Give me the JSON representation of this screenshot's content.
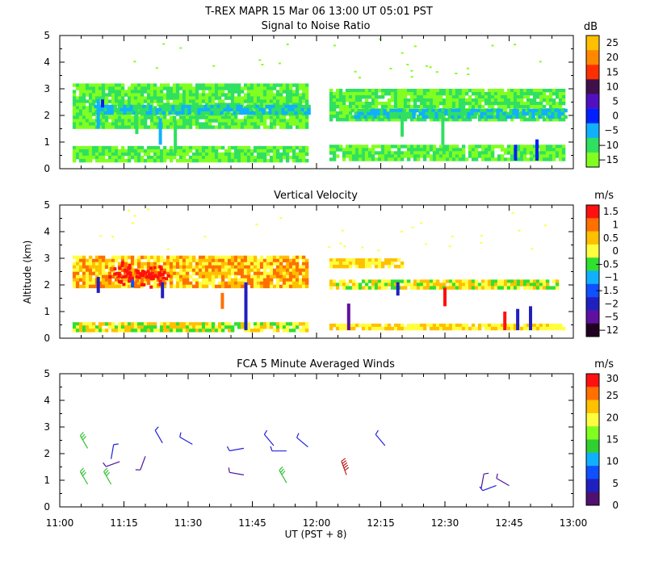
{
  "figure": {
    "title": "T-REX   MAPR 15 Mar 06   13:00 UT   05:01   PST",
    "xlabel": "UT  (PST + 8)",
    "x_ticks": [
      "11:00",
      "11:15",
      "11:30",
      "11:45",
      "12:00",
      "12:15",
      "12:30",
      "12:45",
      "13:00"
    ],
    "x_range_minutes": [
      660,
      780
    ]
  },
  "chart_data": [
    {
      "id": "snr",
      "type": "heatmap",
      "title": "Signal to Noise Ratio",
      "ylabel": "",
      "ylim": [
        0,
        5
      ],
      "y_ticks": [
        "0",
        "1",
        "2",
        "3",
        "4",
        "5"
      ],
      "colorbar": {
        "unit": "dB",
        "labels": [
          "25",
          "20",
          "15",
          "10",
          "5",
          "0",
          "−5",
          "−10",
          "−15"
        ],
        "colors": [
          "#ffc000",
          "#ff8800",
          "#ff3000",
          "#40104a",
          "#5010c0",
          "#0020ff",
          "#10b0ff",
          "#30e060",
          "#80ff20"
        ]
      },
      "data_gap_ut": [
        "11:59",
        "12:06"
      ],
      "layers": [
        {
          "t": [
            663,
            718
          ],
          "z": [
            0.35,
            0.85
          ],
          "colors": [
            "#80ff20",
            "#30e060"
          ],
          "value_db": -12
        },
        {
          "t": [
            723,
            778
          ],
          "z": [
            0.3,
            0.9
          ],
          "colors": [
            "#80ff20",
            "#30e060"
          ],
          "value_db": -12
        },
        {
          "t": [
            663,
            718
          ],
          "z": [
            1.6,
            3.2
          ],
          "colors": [
            "#80ff20",
            "#30e060"
          ],
          "value_db": -11
        },
        {
          "t": [
            723,
            778
          ],
          "z": [
            1.9,
            3.0
          ],
          "colors": [
            "#80ff20",
            "#30e060"
          ],
          "value_db": -11
        },
        {
          "t": [
            668,
            718
          ],
          "z": [
            2.05,
            2.4
          ],
          "colors": [
            "#10b0ff",
            "#30e060"
          ],
          "value_db": -6
        },
        {
          "t": [
            728,
            778
          ],
          "z": [
            2.0,
            2.25
          ],
          "colors": [
            "#10b0ff",
            "#30e060"
          ],
          "value_db": -6
        }
      ],
      "plumes": [
        {
          "t": 669,
          "z": [
            1.5,
            2.6
          ],
          "color": "#10b0ff"
        },
        {
          "t": 670,
          "z": [
            2.3,
            2.6
          ],
          "color": "#0020ff"
        },
        {
          "t": 678,
          "z": [
            1.3,
            2.3
          ],
          "color": "#30e060"
        },
        {
          "t": 683.5,
          "z": [
            0.9,
            1.9
          ],
          "color": "#10b0ff"
        },
        {
          "t": 687,
          "z": [
            0.6,
            1.8
          ],
          "color": "#30e060"
        },
        {
          "t": 740,
          "z": [
            1.2,
            2.1
          ],
          "color": "#30e060"
        },
        {
          "t": 749.5,
          "z": [
            0.9,
            2.1
          ],
          "color": "#30e060"
        },
        {
          "t": 766.5,
          "z": [
            0.3,
            0.9
          ],
          "color": "#0020ff"
        },
        {
          "t": 771.5,
          "z": [
            0.3,
            1.1
          ],
          "color": "#0020ff"
        }
      ]
    },
    {
      "id": "velocity",
      "type": "heatmap",
      "title": "Vertical Velocity",
      "ylabel": "Altitude (km)",
      "ylim": [
        0,
        5
      ],
      "y_ticks": [
        "0",
        "1",
        "2",
        "3",
        "4",
        "5"
      ],
      "colorbar": {
        "unit": "m/s",
        "labels": [
          "1.5",
          "1",
          "0.5",
          "0",
          "−0.5",
          "−1",
          "−1.5",
          "−2",
          "−5",
          "−12"
        ],
        "colors": [
          "#ff1010",
          "#ff7000",
          "#ffc000",
          "#ffff40",
          "#30e030",
          "#10b0ff",
          "#1050ff",
          "#2020c0",
          "#6010a0",
          "#200020"
        ]
      },
      "data_gap_ut": [
        "11:59",
        "12:06"
      ],
      "layers": [
        {
          "t": [
            663,
            718
          ],
          "z": [
            0.35,
            0.6
          ],
          "colors": [
            "#ffff40",
            "#ffc000",
            "#30e030"
          ],
          "value_ms": 0.1
        },
        {
          "t": [
            723,
            778
          ],
          "z": [
            0.35,
            0.55
          ],
          "colors": [
            "#ffff40",
            "#ffc000"
          ],
          "value_ms": 0.1
        },
        {
          "t": [
            663,
            718
          ],
          "z": [
            1.9,
            3.1
          ],
          "colors": [
            "#ffc000",
            "#ffff40",
            "#ff7000"
          ],
          "value_ms": 0.6
        },
        {
          "t": [
            723,
            740
          ],
          "z": [
            2.7,
            3.0
          ],
          "colors": [
            "#ffff40",
            "#ffc000"
          ],
          "value_ms": 0.2
        },
        {
          "t": [
            723,
            776
          ],
          "z": [
            1.95,
            2.2
          ],
          "colors": [
            "#ffff40",
            "#ffc000",
            "#30e030"
          ],
          "value_ms": 0.0
        }
      ],
      "hot_spots": [
        {
          "t": 675,
          "z": 2.5,
          "color": "#ff1010"
        },
        {
          "t": 681,
          "z": 2.4,
          "color": "#ff1010"
        }
      ],
      "plumes": [
        {
          "t": 669,
          "z": [
            1.7,
            2.3
          ],
          "color": "#2020c0"
        },
        {
          "t": 677,
          "z": [
            1.9,
            2.2
          ],
          "color": "#1050ff"
        },
        {
          "t": 684,
          "z": [
            1.5,
            2.1
          ],
          "color": "#2020c0"
        },
        {
          "t": 698,
          "z": [
            1.1,
            1.7
          ],
          "color": "#ff7000"
        },
        {
          "t": 703.5,
          "z": [
            0.3,
            2.1
          ],
          "color": "#2020c0"
        },
        {
          "t": 727.5,
          "z": [
            0.3,
            1.3
          ],
          "color": "#6010a0"
        },
        {
          "t": 739,
          "z": [
            1.6,
            2.1
          ],
          "color": "#2020c0"
        },
        {
          "t": 750,
          "z": [
            1.2,
            1.9
          ],
          "color": "#ff1010"
        },
        {
          "t": 764,
          "z": [
            0.3,
            1.0
          ],
          "color": "#ff1010"
        },
        {
          "t": 767,
          "z": [
            0.3,
            1.1
          ],
          "color": "#2020c0"
        },
        {
          "t": 770,
          "z": [
            0.3,
            1.2
          ],
          "color": "#2020c0"
        }
      ]
    },
    {
      "id": "winds",
      "type": "scatter",
      "title": "FCA 5 Minute Averaged Winds",
      "ylabel": "",
      "ylim": [
        0,
        5
      ],
      "y_ticks": [
        "0",
        "1",
        "2",
        "3",
        "4",
        "5"
      ],
      "colorbar": {
        "unit": "m/s",
        "labels": [
          "30",
          "25",
          "20",
          "15",
          "10",
          "5",
          "0"
        ],
        "colors": [
          "#ff1010",
          "#ff7000",
          "#ffc000",
          "#ffff40",
          "#80ff20",
          "#30d030",
          "#10b0ff",
          "#1050ff",
          "#2020c0",
          "#501070"
        ]
      },
      "barbs": [
        {
          "t": 666.5,
          "z": 2.2,
          "speed": 15,
          "dir": 330
        },
        {
          "t": 666.5,
          "z": 0.85,
          "speed": 15,
          "dir": 330
        },
        {
          "t": 672,
          "z": 0.85,
          "speed": 15,
          "dir": 330
        },
        {
          "t": 672,
          "z": 1.8,
          "speed": 5,
          "dir": 10
        },
        {
          "t": 674,
          "z": 1.7,
          "speed": 4,
          "dir": 250
        },
        {
          "t": 680,
          "z": 1.9,
          "speed": 3,
          "dir": 200
        },
        {
          "t": 684,
          "z": 2.4,
          "speed": 5,
          "dir": 330
        },
        {
          "t": 691,
          "z": 2.35,
          "speed": 5,
          "dir": 300
        },
        {
          "t": 703,
          "z": 2.2,
          "speed": 5,
          "dir": 260
        },
        {
          "t": 703,
          "z": 1.2,
          "speed": 4,
          "dir": 280
        },
        {
          "t": 710,
          "z": 2.3,
          "speed": 5,
          "dir": 320
        },
        {
          "t": 713,
          "z": 2.1,
          "speed": 5,
          "dir": 270
        },
        {
          "t": 713,
          "z": 0.9,
          "speed": 15,
          "dir": 330
        },
        {
          "t": 718,
          "z": 2.25,
          "speed": 5,
          "dir": 310
        },
        {
          "t": 727,
          "z": 1.2,
          "speed": 28,
          "dir": 340
        },
        {
          "t": 736,
          "z": 2.3,
          "speed": 5,
          "dir": 320
        },
        {
          "t": 758.5,
          "z": 0.7,
          "speed": 4,
          "dir": 10
        },
        {
          "t": 762,
          "z": 0.8,
          "speed": 5,
          "dir": 250
        },
        {
          "t": 765,
          "z": 0.8,
          "speed": 4,
          "dir": 300
        }
      ]
    }
  ]
}
